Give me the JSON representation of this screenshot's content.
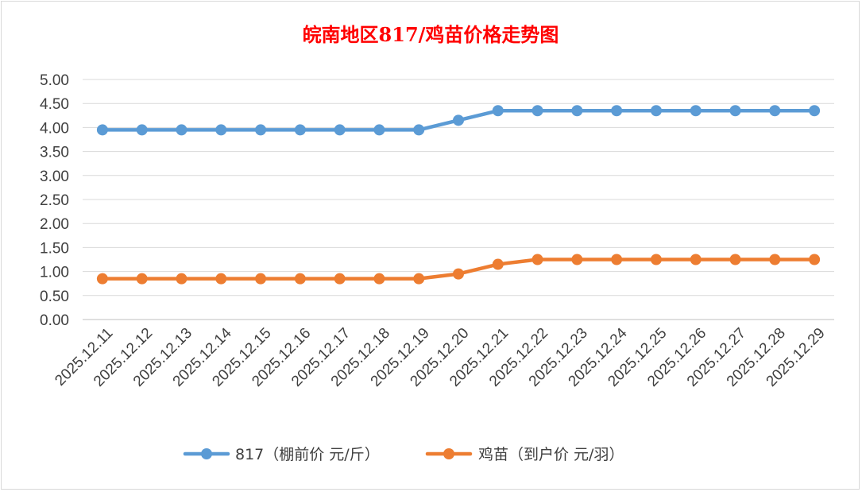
{
  "chart_data": {
    "type": "line",
    "title": "皖南地区817/鸡苗价格走势图",
    "x": [
      "2025.12.11",
      "2025.12.12",
      "2025.12.13",
      "2025.12.14",
      "2025.12.15",
      "2025.12.16",
      "2025.12.17",
      "2025.12.18",
      "2025.12.19",
      "2025.12.20",
      "2025.12.21",
      "2025.12.22",
      "2025.12.23",
      "2025.12.24",
      "2025.12.25",
      "2025.12.26",
      "2025.12.27",
      "2025.12.28",
      "2025.12.29"
    ],
    "series": [
      {
        "name": "817（棚前价 元/斤）",
        "color": "#5b9bd5",
        "values": [
          3.95,
          3.95,
          3.95,
          3.95,
          3.95,
          3.95,
          3.95,
          3.95,
          3.95,
          4.15,
          4.35,
          4.35,
          4.35,
          4.35,
          4.35,
          4.35,
          4.35,
          4.35,
          4.35
        ]
      },
      {
        "name": "鸡苗（到户价 元/羽）",
        "color": "#ed7d31",
        "values": [
          0.85,
          0.85,
          0.85,
          0.85,
          0.85,
          0.85,
          0.85,
          0.85,
          0.85,
          0.95,
          1.15,
          1.25,
          1.25,
          1.25,
          1.25,
          1.25,
          1.25,
          1.25,
          1.25
        ]
      }
    ],
    "ylim": [
      0,
      5
    ],
    "yticks": [
      "0.00",
      "0.50",
      "1.00",
      "1.50",
      "2.00",
      "2.50",
      "3.00",
      "3.50",
      "4.00",
      "4.50",
      "5.00"
    ],
    "grid": true,
    "legend_position": "bottom"
  }
}
